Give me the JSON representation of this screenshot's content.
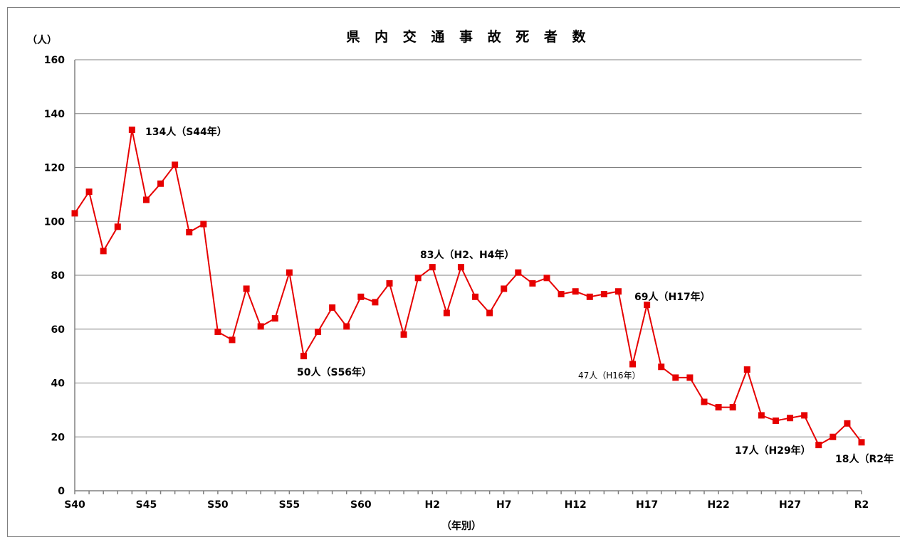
{
  "chart_data": {
    "type": "line",
    "title": "県 内 交 通 事 故 死 者 数",
    "ylabel": "（人）",
    "xlabel": "（年別）",
    "ylim": [
      0,
      160
    ],
    "yticks": [
      0,
      20,
      40,
      60,
      80,
      100,
      120,
      140,
      160
    ],
    "grid": true,
    "x_tick_labels": [
      "S40",
      "S45",
      "S50",
      "S55",
      "S60",
      "H2",
      "H7",
      "H12",
      "H17",
      "H22",
      "H27",
      "R2"
    ],
    "x": [
      "S40",
      "S41",
      "S42",
      "S43",
      "S44",
      "S45",
      "S46",
      "S47",
      "S48",
      "S49",
      "S50",
      "S51",
      "S52",
      "S53",
      "S54",
      "S55",
      "S56",
      "S57",
      "S58",
      "S59",
      "S60",
      "S61",
      "S62",
      "S63",
      "H1",
      "H2",
      "H3",
      "H4",
      "H5",
      "H6",
      "H7",
      "H8",
      "H9",
      "H10",
      "H11",
      "H12",
      "H13",
      "H14",
      "H15",
      "H16",
      "H17",
      "H18",
      "H19",
      "H20",
      "H21",
      "H22",
      "H23",
      "H24",
      "H25",
      "H26",
      "H27",
      "H28",
      "H29",
      "H30",
      "R1",
      "R2"
    ],
    "series": [
      {
        "color": "#e60000",
        "values": [
          103,
          111,
          89,
          98,
          134,
          108,
          114,
          121,
          96,
          99,
          59,
          56,
          75,
          61,
          64,
          81,
          50,
          59,
          68,
          61,
          72,
          70,
          77,
          58,
          79,
          83,
          66,
          83,
          72,
          66,
          75,
          81,
          77,
          79,
          73,
          74,
          72,
          73,
          74,
          47,
          69,
          46,
          42,
          42,
          33,
          31,
          31,
          45,
          28,
          26,
          27,
          28,
          17,
          20,
          25,
          18
        ]
      }
    ],
    "annotations": [
      {
        "text": "134人（S44年）",
        "index": 4
      },
      {
        "text": "83人（H2、H4年）",
        "index": 25
      },
      {
        "text": "50人（S56年）",
        "index": 16
      },
      {
        "text": "47人（H16年）",
        "index": 39
      },
      {
        "text": "69人（H17年）",
        "index": 40
      },
      {
        "text": "17人（H29年）",
        "index": 52
      },
      {
        "text": "18人（R2年",
        "index": 55
      }
    ]
  }
}
